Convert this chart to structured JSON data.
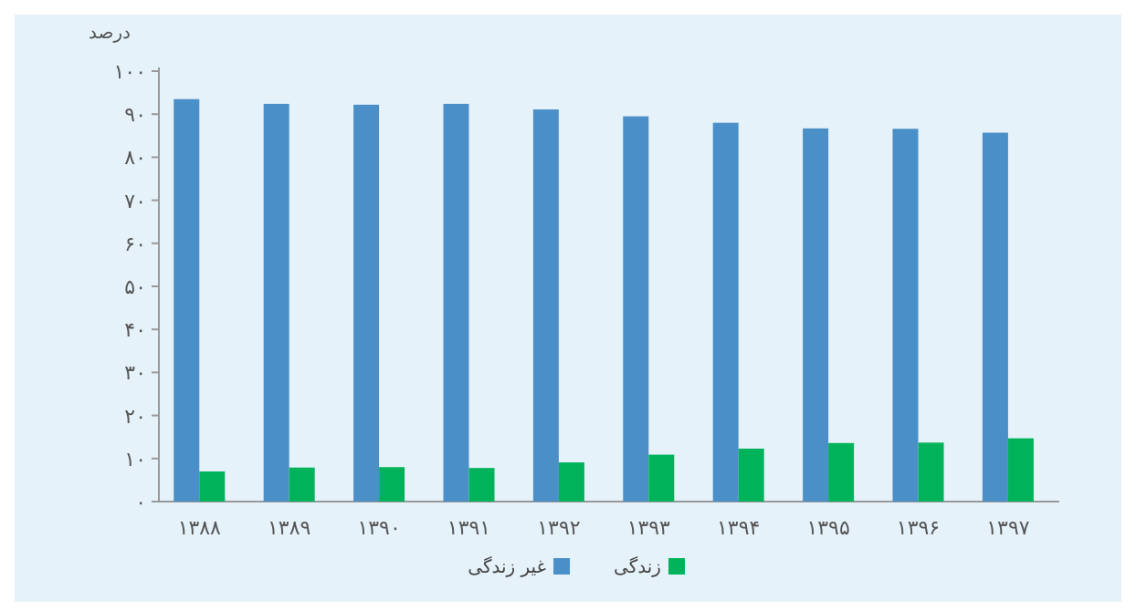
{
  "chart_data": {
    "type": "bar",
    "ylabel": "درصد",
    "categories": [
      "۱۳۸۸",
      "۱۳۸۹",
      "۱۳۹۰",
      "۱۳۹۱",
      "۱۳۹۲",
      "۱۳۹۳",
      "۱۳۹۴",
      "۱۳۹۵",
      "۱۳۹۶",
      "۱۳۹۷"
    ],
    "series": [
      {
        "name": "غیر زندگی",
        "color": "#4a8fc7",
        "values": [
          93.5,
          92.4,
          92.2,
          92.4,
          91.1,
          89.5,
          88.0,
          86.7,
          86.6,
          85.7
        ]
      },
      {
        "name": "زندگی",
        "color": "#00b35a",
        "values": [
          7.0,
          7.9,
          8.0,
          7.8,
          9.1,
          10.9,
          12.3,
          13.6,
          13.7,
          14.7
        ]
      }
    ],
    "ylim": [
      0,
      100
    ],
    "yticks": [
      {
        "value": 0,
        "label": "۰"
      },
      {
        "value": 10,
        "label": "۱۰"
      },
      {
        "value": 20,
        "label": "۲۰"
      },
      {
        "value": 30,
        "label": "۳۰"
      },
      {
        "value": 40,
        "label": "۴۰"
      },
      {
        "value": 50,
        "label": "۵۰"
      },
      {
        "value": 60,
        "label": "۶۰"
      },
      {
        "value": 70,
        "label": "۷۰"
      },
      {
        "value": 80,
        "label": "۸۰"
      },
      {
        "value": 90,
        "label": "۹۰"
      },
      {
        "value": 100,
        "label": "۱۰۰"
      }
    ],
    "legend": "bottom"
  }
}
